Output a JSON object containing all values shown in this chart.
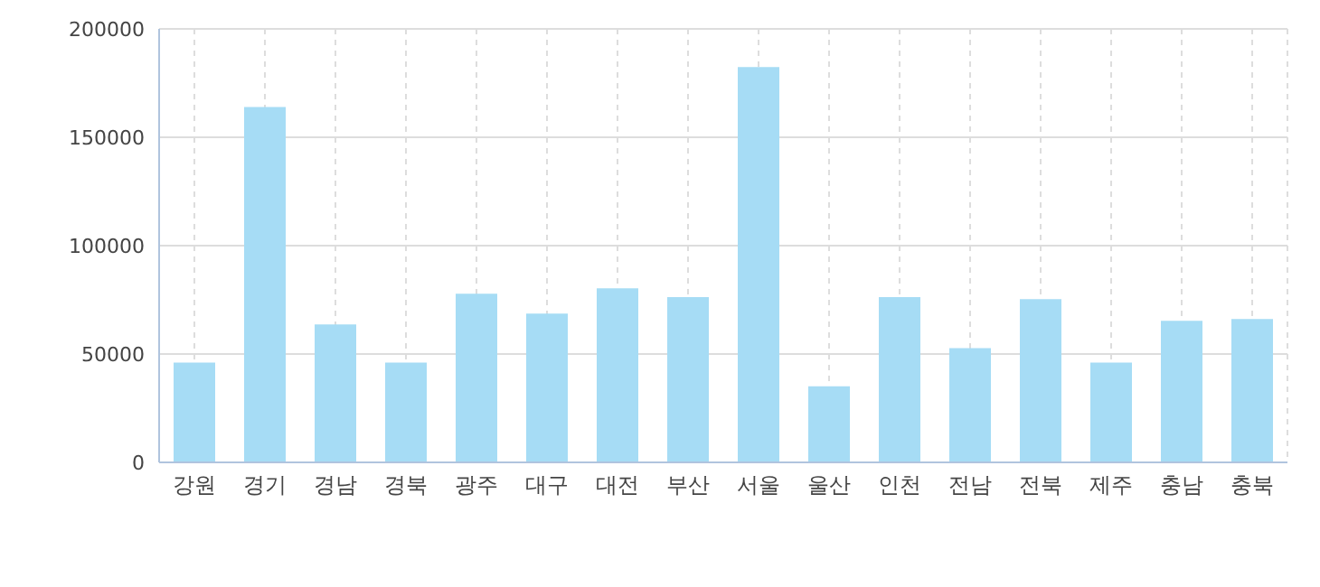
{
  "chart_data": {
    "type": "bar",
    "categories": [
      "강원",
      "경기",
      "경남",
      "경북",
      "광주",
      "대구",
      "대전",
      "부산",
      "서울",
      "울산",
      "인천",
      "전남",
      "전북",
      "제주",
      "충남",
      "충북"
    ],
    "values": [
      46000,
      164000,
      63600,
      46000,
      77800,
      68600,
      80300,
      76200,
      182400,
      35100,
      76200,
      52700,
      75300,
      46000,
      65300,
      66100
    ],
    "color": "#a6dcf5",
    "ylim": [
      0,
      200000
    ],
    "yticks": [
      0,
      50000,
      100000,
      150000,
      200000
    ],
    "grid": true
  }
}
